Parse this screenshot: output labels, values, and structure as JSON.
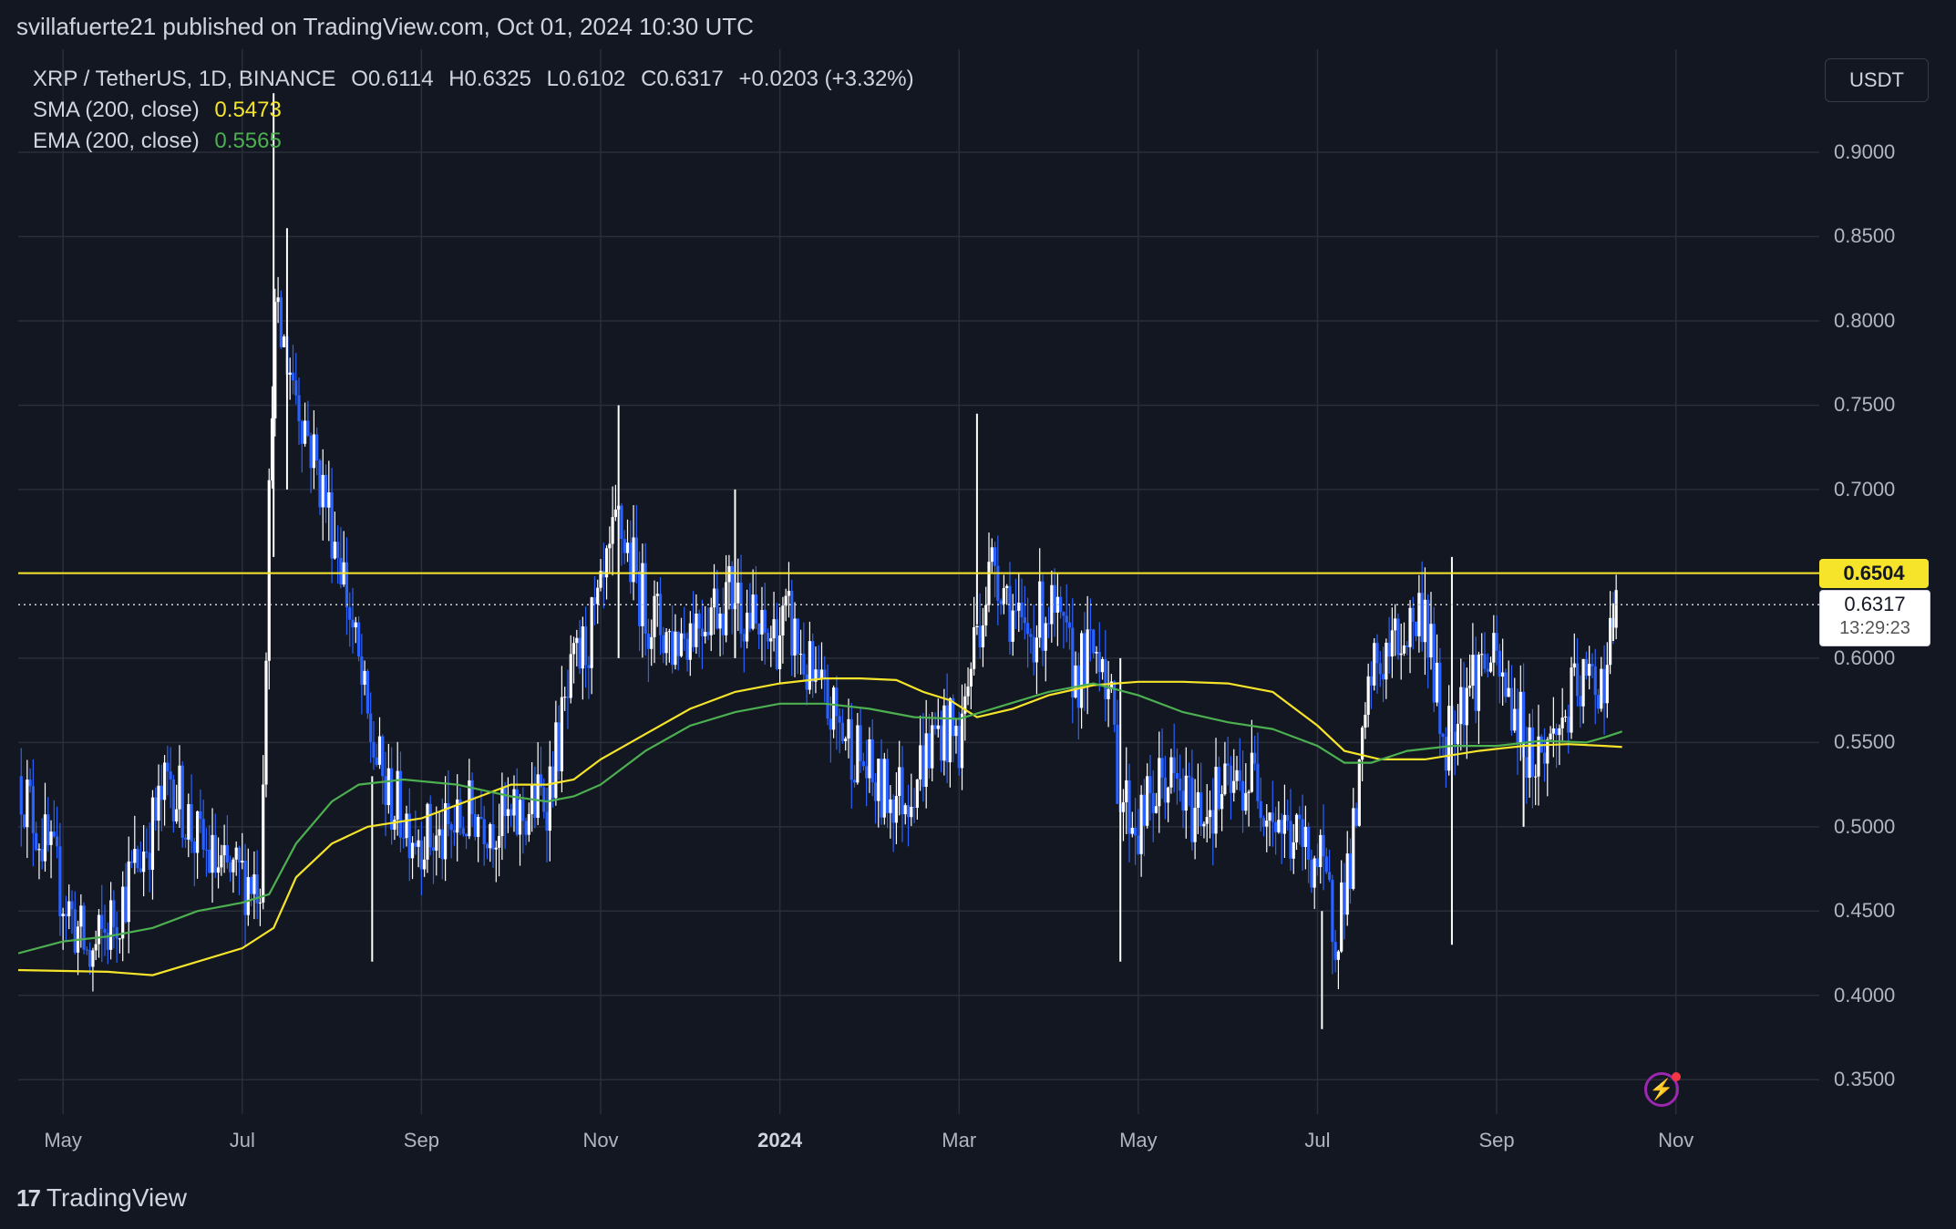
{
  "header": {
    "published": "svillafuerte21 published on TradingView.com, Oct 01, 2024 10:30 UTC"
  },
  "legend": {
    "symbol": "XRP / TetherUS, 1D, BINANCE",
    "open": "O0.6114",
    "high": "H0.6325",
    "low": "L0.6102",
    "close": "C0.6317",
    "change": "+0.0203 (+3.32%)",
    "sma_label": "SMA (200, close)",
    "sma_value": "0.5473",
    "ema_label": "EMA (200, close)",
    "ema_value": "0.5565"
  },
  "currency_button": "USDT",
  "level_tag": "0.6504",
  "close_tag": {
    "price": "0.6317",
    "timer": "13:29:23"
  },
  "footer": {
    "brand": "TradingView",
    "logo": "17"
  },
  "flash_icon": "⚡",
  "colors": {
    "background": "#131722",
    "candles": "#2962ff",
    "candles_up": "#ffffff",
    "sma": "#f5e42a",
    "ema": "#4caf50",
    "level_line": "#f5e42a",
    "grid": "#2a2e39"
  },
  "chart_data": {
    "type": "candlestick",
    "title": "XRP / TetherUS, 1D, BINANCE",
    "y_ticks": [
      "0.9000",
      "0.8500",
      "0.8000",
      "0.7500",
      "0.7000",
      "0.6500",
      "0.6000",
      "0.5500",
      "0.5000",
      "0.4500",
      "0.4000",
      "0.3500"
    ],
    "y_tick_values": [
      0.9,
      0.85,
      0.8,
      0.75,
      0.7,
      0.65,
      0.6,
      0.55,
      0.5,
      0.45,
      0.4,
      0.35
    ],
    "ylim": [
      0.3296,
      0.9611
    ],
    "x_ticks": [
      {
        "label": "May",
        "month": 0
      },
      {
        "label": "Jul",
        "month": 2
      },
      {
        "label": "Sep",
        "month": 4
      },
      {
        "label": "Nov",
        "month": 6
      },
      {
        "label": "2024",
        "month": 8,
        "bold": true
      },
      {
        "label": "Mar",
        "month": 10
      },
      {
        "label": "May",
        "month": 12
      },
      {
        "label": "Jul",
        "month": 14
      },
      {
        "label": "Sep",
        "month": 16
      },
      {
        "label": "Nov",
        "month": 18
      }
    ],
    "xlim_months": [
      -0.5,
      19.6
    ],
    "horizontal_level": 0.6504,
    "last_close": 0.6317,
    "price_path": [
      [
        -0.5,
        0.53
      ],
      [
        0.0,
        0.46
      ],
      [
        0.3,
        0.42
      ],
      [
        0.6,
        0.45
      ],
      [
        1.0,
        0.5
      ],
      [
        1.2,
        0.53
      ],
      [
        1.5,
        0.49
      ],
      [
        1.8,
        0.47
      ],
      [
        2.2,
        0.47
      ],
      [
        2.35,
        0.8
      ],
      [
        2.5,
        0.78
      ],
      [
        2.8,
        0.72
      ],
      [
        3.1,
        0.66
      ],
      [
        3.4,
        0.56
      ],
      [
        3.6,
        0.52
      ],
      [
        3.9,
        0.5
      ],
      [
        4.2,
        0.49
      ],
      [
        4.6,
        0.51
      ],
      [
        5.0,
        0.5
      ],
      [
        5.4,
        0.52
      ],
      [
        5.7,
        0.59
      ],
      [
        6.0,
        0.63
      ],
      [
        6.2,
        0.68
      ],
      [
        6.5,
        0.63
      ],
      [
        6.8,
        0.61
      ],
      [
        7.2,
        0.63
      ],
      [
        7.5,
        0.64
      ],
      [
        7.8,
        0.61
      ],
      [
        8.1,
        0.62
      ],
      [
        8.4,
        0.58
      ],
      [
        8.8,
        0.55
      ],
      [
        9.1,
        0.52
      ],
      [
        9.4,
        0.52
      ],
      [
        9.8,
        0.56
      ],
      [
        10.0,
        0.55
      ],
      [
        10.2,
        0.62
      ],
      [
        10.4,
        0.66
      ],
      [
        10.7,
        0.61
      ],
      [
        11.0,
        0.63
      ],
      [
        11.3,
        0.59
      ],
      [
        11.6,
        0.61
      ],
      [
        11.8,
        0.52
      ],
      [
        12.0,
        0.5
      ],
      [
        12.3,
        0.53
      ],
      [
        12.6,
        0.51
      ],
      [
        13.0,
        0.52
      ],
      [
        13.3,
        0.53
      ],
      [
        13.6,
        0.5
      ],
      [
        14.0,
        0.48
      ],
      [
        14.2,
        0.44
      ],
      [
        14.4,
        0.49
      ],
      [
        14.6,
        0.59
      ],
      [
        14.9,
        0.61
      ],
      [
        15.2,
        0.63
      ],
      [
        15.4,
        0.55
      ],
      [
        15.6,
        0.58
      ],
      [
        15.9,
        0.6
      ],
      [
        16.2,
        0.57
      ],
      [
        16.4,
        0.54
      ],
      [
        16.6,
        0.55
      ],
      [
        16.9,
        0.58
      ],
      [
        17.2,
        0.59
      ],
      [
        17.35,
        0.6317
      ]
    ],
    "series": [
      {
        "name": "SMA (200, close)",
        "points": [
          [
            -0.5,
            0.415
          ],
          [
            0.5,
            0.414
          ],
          [
            1.0,
            0.412
          ],
          [
            1.5,
            0.42
          ],
          [
            2.0,
            0.428
          ],
          [
            2.35,
            0.44
          ],
          [
            2.6,
            0.47
          ],
          [
            3.0,
            0.49
          ],
          [
            3.4,
            0.5
          ],
          [
            4.0,
            0.505
          ],
          [
            4.5,
            0.515
          ],
          [
            5.0,
            0.525
          ],
          [
            5.4,
            0.525
          ],
          [
            5.7,
            0.528
          ],
          [
            6.0,
            0.54
          ],
          [
            6.5,
            0.555
          ],
          [
            7.0,
            0.57
          ],
          [
            7.5,
            0.58
          ],
          [
            8.0,
            0.585
          ],
          [
            8.5,
            0.588
          ],
          [
            8.9,
            0.588
          ],
          [
            9.3,
            0.587
          ],
          [
            9.6,
            0.58
          ],
          [
            9.9,
            0.575
          ],
          [
            10.2,
            0.565
          ],
          [
            10.6,
            0.57
          ],
          [
            11.0,
            0.578
          ],
          [
            11.5,
            0.584
          ],
          [
            12.0,
            0.586
          ],
          [
            12.5,
            0.586
          ],
          [
            13.0,
            0.585
          ],
          [
            13.5,
            0.58
          ],
          [
            14.0,
            0.56
          ],
          [
            14.3,
            0.545
          ],
          [
            14.7,
            0.54
          ],
          [
            15.2,
            0.54
          ],
          [
            15.8,
            0.545
          ],
          [
            16.3,
            0.548
          ],
          [
            16.8,
            0.549
          ],
          [
            17.2,
            0.548
          ],
          [
            17.4,
            0.5473
          ]
        ]
      },
      {
        "name": "EMA (200, close)",
        "points": [
          [
            -0.5,
            0.425
          ],
          [
            0.0,
            0.432
          ],
          [
            0.5,
            0.435
          ],
          [
            1.0,
            0.44
          ],
          [
            1.5,
            0.45
          ],
          [
            2.0,
            0.455
          ],
          [
            2.3,
            0.46
          ],
          [
            2.6,
            0.49
          ],
          [
            3.0,
            0.515
          ],
          [
            3.3,
            0.525
          ],
          [
            3.8,
            0.528
          ],
          [
            4.4,
            0.525
          ],
          [
            5.0,
            0.518
          ],
          [
            5.4,
            0.515
          ],
          [
            5.7,
            0.518
          ],
          [
            6.0,
            0.525
          ],
          [
            6.5,
            0.545
          ],
          [
            7.0,
            0.56
          ],
          [
            7.5,
            0.568
          ],
          [
            8.0,
            0.573
          ],
          [
            8.5,
            0.573
          ],
          [
            9.0,
            0.57
          ],
          [
            9.5,
            0.565
          ],
          [
            10.0,
            0.564
          ],
          [
            10.5,
            0.572
          ],
          [
            11.0,
            0.58
          ],
          [
            11.5,
            0.585
          ],
          [
            12.0,
            0.578
          ],
          [
            12.5,
            0.568
          ],
          [
            13.0,
            0.562
          ],
          [
            13.5,
            0.558
          ],
          [
            14.0,
            0.548
          ],
          [
            14.3,
            0.538
          ],
          [
            14.6,
            0.538
          ],
          [
            15.0,
            0.545
          ],
          [
            15.5,
            0.548
          ],
          [
            16.0,
            0.548
          ],
          [
            16.5,
            0.551
          ],
          [
            17.0,
            0.55
          ],
          [
            17.2,
            0.553
          ],
          [
            17.4,
            0.5565
          ]
        ]
      }
    ],
    "spikes": [
      {
        "month": 2.35,
        "high": 0.935,
        "low": 0.66
      },
      {
        "month": 2.5,
        "high": 0.855,
        "low": 0.7
      },
      {
        "month": 3.45,
        "high": 0.53,
        "low": 0.42
      },
      {
        "month": 6.2,
        "high": 0.75,
        "low": 0.6
      },
      {
        "month": 7.5,
        "high": 0.7,
        "low": 0.6
      },
      {
        "month": 10.2,
        "high": 0.745,
        "low": 0.62
      },
      {
        "month": 11.8,
        "high": 0.6,
        "low": 0.42
      },
      {
        "month": 14.05,
        "high": 0.45,
        "low": 0.38
      },
      {
        "month": 15.5,
        "high": 0.66,
        "low": 0.43
      },
      {
        "month": 16.3,
        "high": 0.55,
        "low": 0.5
      },
      {
        "month": 17.3,
        "high": 0.6325,
        "low": 0.6102
      }
    ]
  }
}
